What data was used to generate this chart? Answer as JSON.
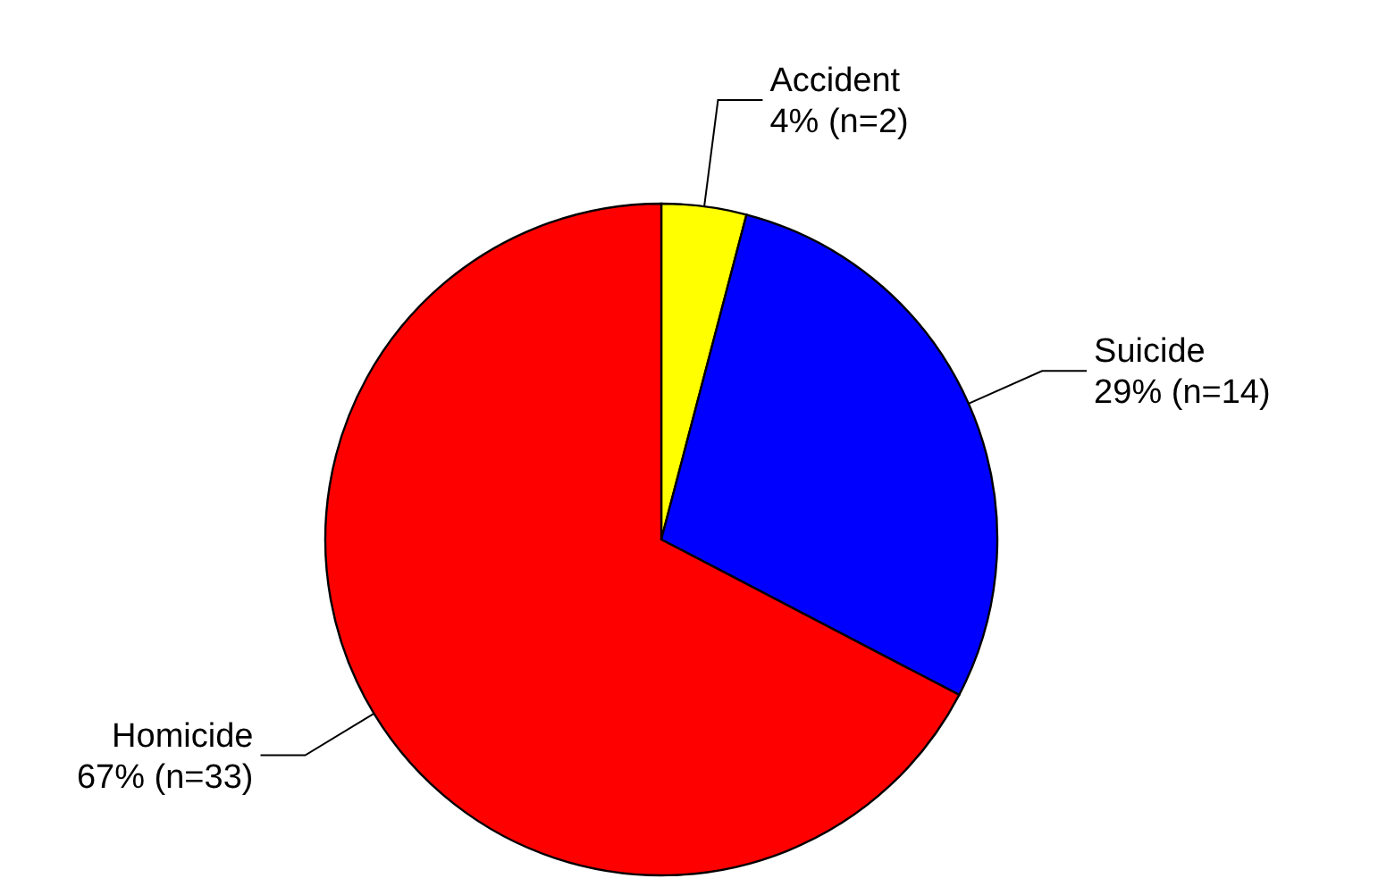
{
  "chart_data": {
    "type": "pie",
    "categories": [
      "Accident",
      "Suicide",
      "Homicide"
    ],
    "values": [
      2,
      14,
      33
    ],
    "value_labels": [
      "4% (n=2)",
      "29% (n=14)",
      "67% (n=33)"
    ],
    "colors": [
      "#ffff00",
      "#0000ff",
      "#ff0000"
    ]
  }
}
